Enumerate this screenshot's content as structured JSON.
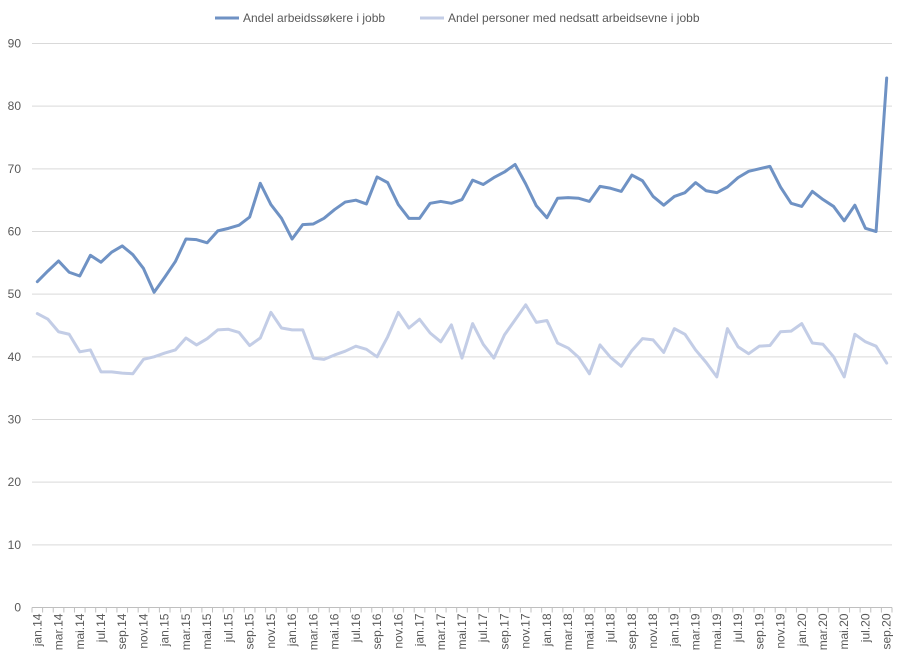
{
  "chart_data": {
    "type": "line",
    "title": "",
    "xlabel": "",
    "ylabel": "",
    "ylim": [
      0,
      90
    ],
    "yticks": [
      0,
      10,
      20,
      30,
      40,
      50,
      60,
      70,
      80,
      90
    ],
    "grid": true,
    "legend_position": "top",
    "x": [
      "jan.14",
      "feb.14",
      "mar.14",
      "apr.14",
      "mai.14",
      "jun.14",
      "jul.14",
      "aug.14",
      "sep.14",
      "okt.14",
      "nov.14",
      "des.14",
      "jan.15",
      "feb.15",
      "mar.15",
      "apr.15",
      "mai.15",
      "jun.15",
      "jul.15",
      "aug.15",
      "sep.15",
      "okt.15",
      "nov.15",
      "des.15",
      "jan.16",
      "feb.16",
      "mar.16",
      "apr.16",
      "mai.16",
      "jun.16",
      "jul.16",
      "aug.16",
      "sep.16",
      "okt.16",
      "nov.16",
      "des.16",
      "jan.17",
      "feb.17",
      "mar.17",
      "apr.17",
      "mai.17",
      "jun.17",
      "jul.17",
      "aug.17",
      "sep.17",
      "okt.17",
      "nov.17",
      "des.17",
      "jan.18",
      "feb.18",
      "mar.18",
      "apr.18",
      "mai.18",
      "jun.18",
      "jul.18",
      "aug.18",
      "sep.18",
      "okt.18",
      "nov.18",
      "des.18",
      "jan.19",
      "feb.19",
      "mar.19",
      "apr.19",
      "mai.19",
      "jun.19",
      "jul.19",
      "aug.19",
      "sep.19",
      "okt.19",
      "nov.19",
      "des.19",
      "jan.20",
      "feb.20",
      "mar.20",
      "apr.20",
      "mai.20",
      "jun.20",
      "jul.20",
      "aug.20",
      "sep.20"
    ],
    "x_tick_labels": [
      "jan.14",
      "mar.14",
      "mai.14",
      "jul.14",
      "sep.14",
      "nov.14",
      "jan.15",
      "mar.15",
      "mai.15",
      "jul.15",
      "sep.15",
      "nov.15",
      "jan.16",
      "mar.16",
      "mai.16",
      "jul.16",
      "sep.16",
      "nov.16",
      "jan.17",
      "mar.17",
      "mai.17",
      "jul.17",
      "sep.17",
      "nov.17",
      "jan.18",
      "mar.18",
      "mai.18",
      "jul.18",
      "sep.18",
      "nov.18",
      "jan.19",
      "mar.19",
      "mai.19",
      "jul.19",
      "sep.19",
      "nov.19",
      "jan.20",
      "mar.20",
      "mai.20",
      "jul.20",
      "sep.20"
    ],
    "series": [
      {
        "name": "Andel arbeidssøkere i jobb",
        "color": "#6f92c4",
        "values": [
          52.0,
          53.7,
          55.3,
          53.5,
          52.9,
          56.2,
          55.1,
          56.7,
          57.7,
          56.3,
          54.1,
          50.3,
          52.7,
          55.2,
          58.8,
          58.7,
          58.2,
          60.1,
          60.5,
          61.0,
          62.3,
          67.7,
          64.3,
          62.1,
          58.8,
          61.1,
          61.2,
          62.1,
          63.5,
          64.7,
          65.0,
          64.4,
          68.7,
          67.8,
          64.3,
          62.1,
          62.1,
          64.5,
          64.8,
          64.5,
          65.1,
          68.2,
          67.5,
          68.6,
          69.5,
          70.7,
          67.6,
          64.1,
          62.2,
          65.3,
          65.4,
          65.3,
          64.8,
          67.2,
          66.9,
          66.4,
          69.0,
          68.1,
          65.6,
          64.2,
          65.6,
          66.2,
          67.8,
          66.5,
          66.2,
          67.1,
          68.6,
          69.6,
          70.0,
          70.4,
          67.1,
          64.5,
          64.0,
          66.4,
          65.1,
          64.0,
          61.7,
          64.2,
          60.5,
          60.0,
          84.5
        ]
      },
      {
        "name": "Andel personer med nedsatt arbeidsevne i jobb",
        "color": "#c3cde6",
        "values": [
          46.9,
          46.0,
          44.0,
          43.6,
          40.8,
          41.1,
          37.6,
          37.6,
          37.4,
          37.3,
          39.6,
          40.0,
          40.6,
          41.1,
          43.0,
          41.9,
          42.9,
          44.3,
          44.4,
          43.9,
          41.8,
          43.0,
          47.1,
          44.6,
          44.3,
          44.3,
          39.8,
          39.6,
          40.3,
          40.9,
          41.7,
          41.2,
          40.0,
          43.2,
          47.1,
          44.6,
          46.0,
          43.8,
          42.4,
          45.1,
          39.8,
          45.3,
          42.0,
          39.8,
          43.5,
          45.9,
          48.3,
          45.5,
          45.8,
          42.2,
          41.4,
          39.9,
          37.3,
          41.9,
          39.9,
          38.5,
          41.0,
          42.9,
          42.7,
          40.7,
          44.5,
          43.6,
          41.1,
          39.1,
          36.8,
          44.5,
          41.6,
          40.5,
          41.7,
          41.8,
          44.0,
          44.1,
          45.3,
          42.2,
          42.0,
          40.0,
          36.8,
          43.6,
          42.4,
          41.7,
          39.0
        ]
      }
    ]
  }
}
